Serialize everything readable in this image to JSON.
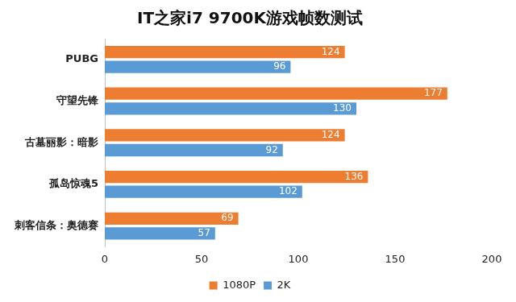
{
  "chart_data": {
    "type": "bar",
    "title": "IT之家i7 9700K游戏帧数测试",
    "orientation": "horizontal",
    "categories": [
      "PUBG",
      "守望先锋",
      "古墓丽影：暗影",
      "孤岛惊魂5",
      "刺客信条：奥德赛"
    ],
    "series": [
      {
        "name": "1080P",
        "color": "#ed7d31",
        "values": [
          124,
          177,
          124,
          136,
          69
        ]
      },
      {
        "name": "2K",
        "color": "#5b9bd5",
        "values": [
          96,
          130,
          92,
          102,
          57
        ]
      }
    ],
    "xlim": [
      0,
      200
    ],
    "xticks": [
      0,
      50,
      100,
      150,
      200
    ],
    "grid": false,
    "legend": "bottom",
    "data_labels": true
  }
}
